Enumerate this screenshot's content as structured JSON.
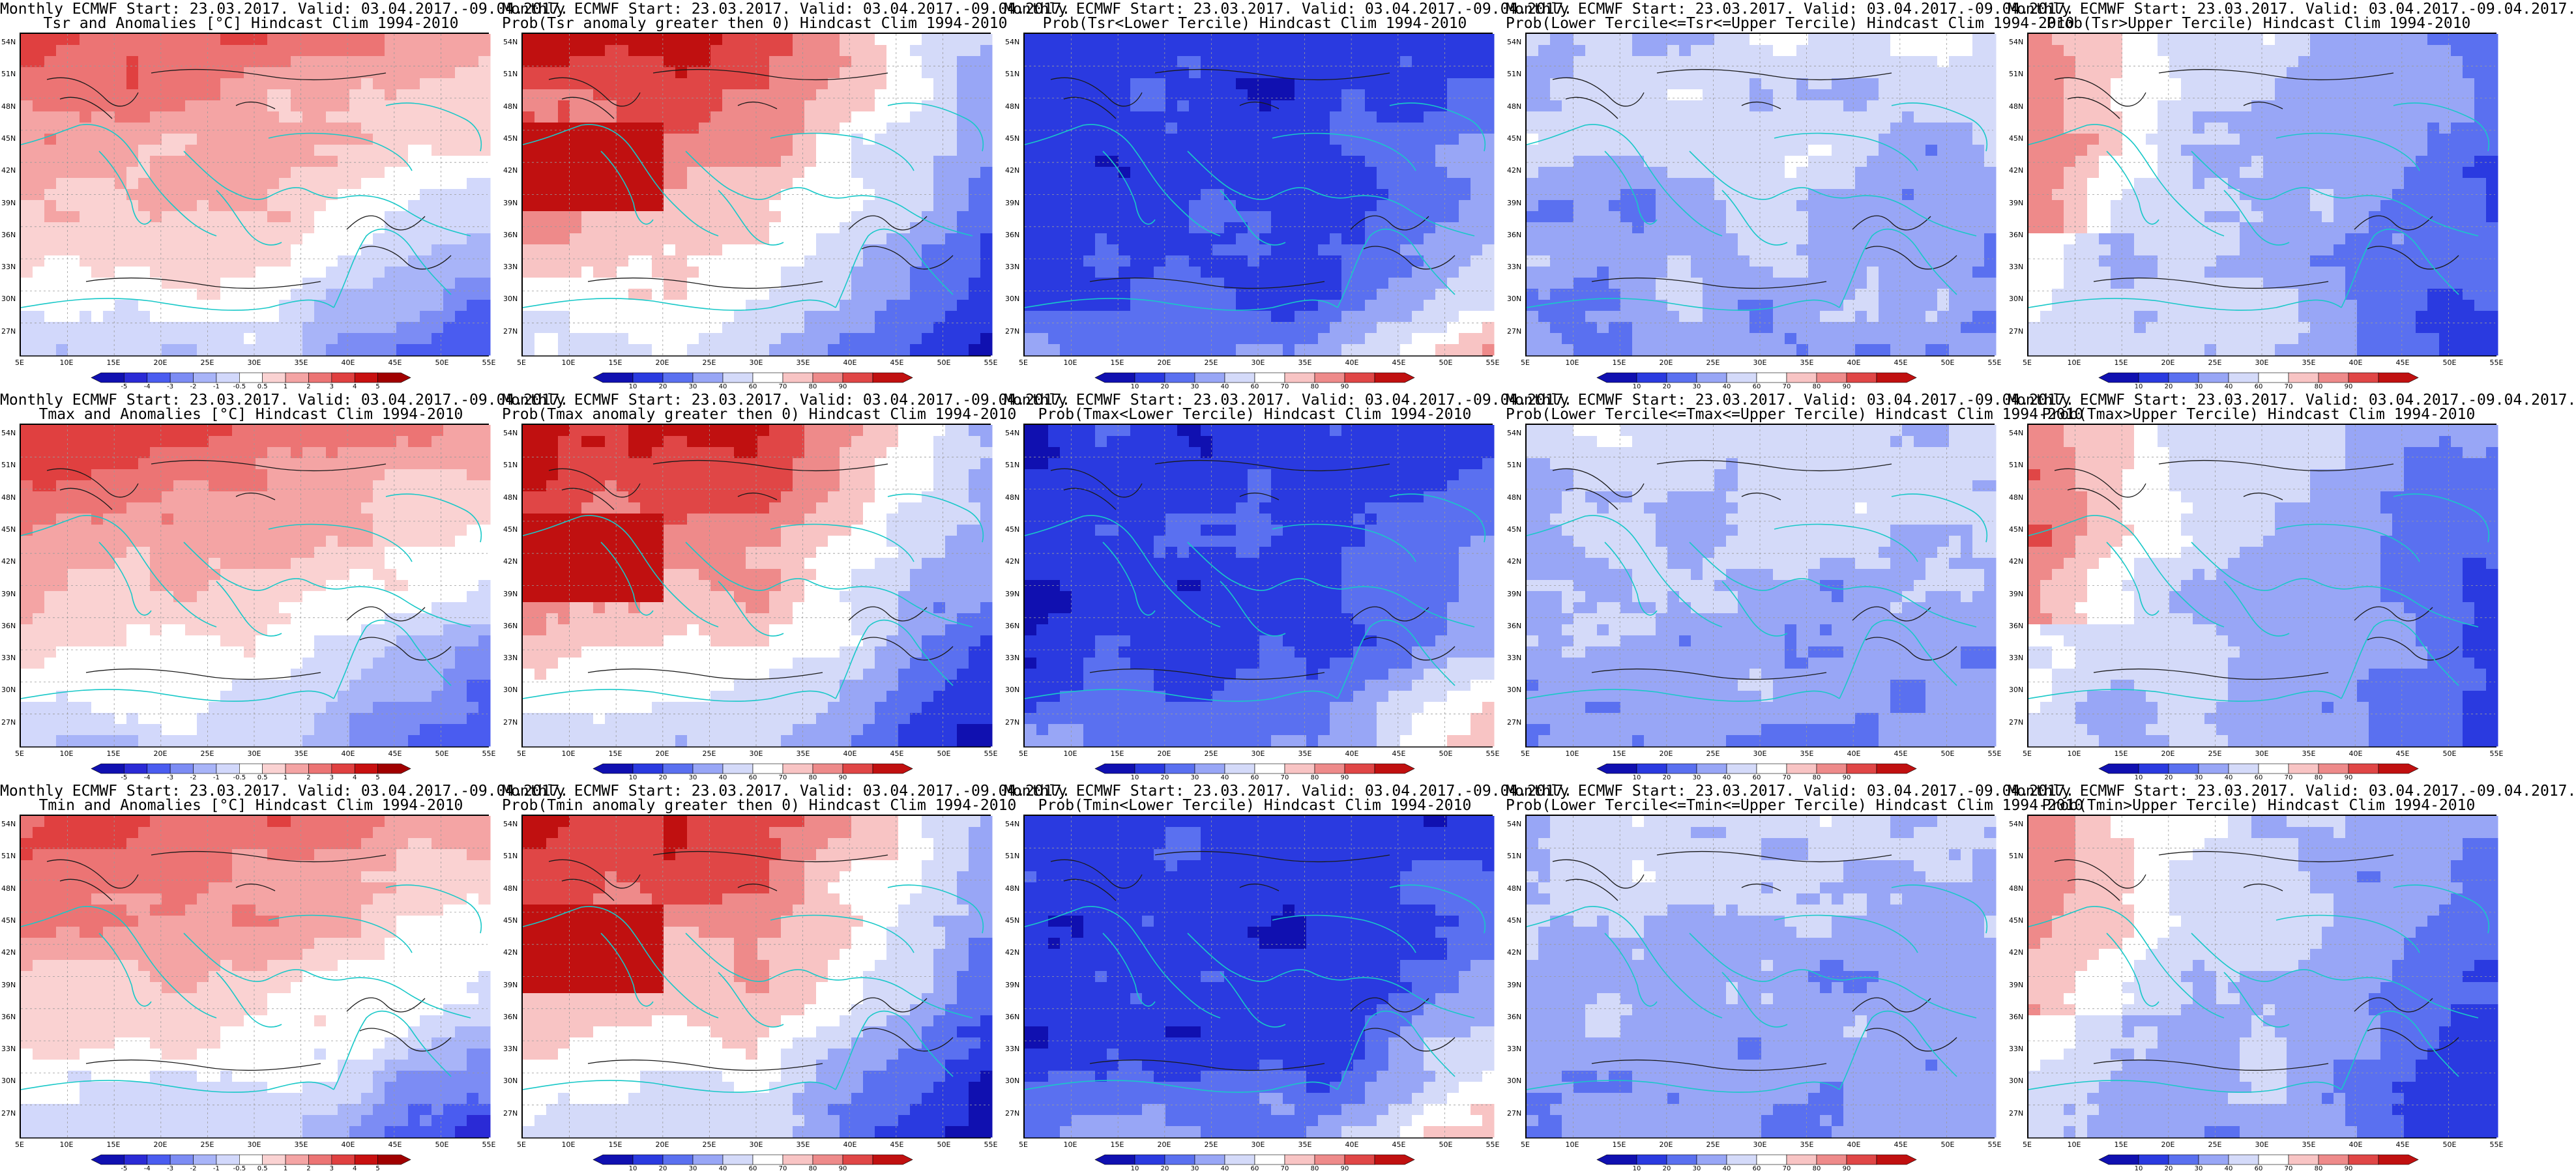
{
  "header_line": "Monthly ECMWF Start: 23.03.2017. Valid: 03.04.2017.-09.04.2017.",
  "lat_labels": [
    "54N",
    "51N",
    "48N",
    "45N",
    "42N",
    "39N",
    "36N",
    "33N",
    "30N",
    "27N"
  ],
  "lon_labels": [
    "5E",
    "10E",
    "15E",
    "20E",
    "25E",
    "30E",
    "35E",
    "40E",
    "45E",
    "50E",
    "55E"
  ],
  "colorbars": {
    "anomaly": {
      "ticks": [
        "-5",
        "-4",
        "-3",
        "-2",
        "-1",
        "-0.5",
        "0.5",
        "1",
        "2",
        "3",
        "4",
        "5"
      ],
      "colors": [
        "#1010b0",
        "#2a2ad6",
        "#4a5cf0",
        "#7c8cf4",
        "#a8b4f8",
        "#d2d8fb",
        "#ffffff",
        "#fad2d2",
        "#f4a4a4",
        "#ec7474",
        "#e04040",
        "#c81010",
        "#a00000"
      ]
    },
    "probability": {
      "ticks": [
        "10",
        "20",
        "30",
        "40",
        "60",
        "70",
        "80",
        "90"
      ],
      "colors": [
        "#1010b0",
        "#2a3ae0",
        "#5a70f0",
        "#98a6f6",
        "#d4daf9",
        "#ffffff",
        "#f8c4c4",
        "#ee8a8a",
        "#e04646",
        "#c01010"
      ]
    }
  },
  "panels": [
    {
      "id": "tsr-anomaly",
      "line1": "Monthly ECMWF Start: 23.03.2017. Valid: 03.04.2017.-09.04.2017.",
      "line2": "Tsr and Anomalies [°C] Hindcast Clim 1994-2010",
      "scheme": "anomaly",
      "pattern": "anom"
    },
    {
      "id": "tsr-prob-positive",
      "line1": "Monthly ECMWF Start: 23.03.2017. Valid: 03.04.2017.-09.04.2017.",
      "line2": "Prob(Tsr anomaly greater then 0) Hindcast Clim 1994-2010",
      "scheme": "probability",
      "pattern": "pos"
    },
    {
      "id": "tsr-prob-lower",
      "line1": "Monthly ECMWF Start: 23.03.2017. Valid: 03.04.2017.-09.04.2017.",
      "line2": "Prob(Tsr<Lower Tercile) Hindcast Clim 1994-2010",
      "scheme": "probability",
      "pattern": "lower"
    },
    {
      "id": "tsr-prob-middle",
      "line1": "Monthly ECMWF Start: 23.03.2017. Valid: 03.04.2017.-09.04.2017.",
      "line2": "Prob(Lower Tercile<=Tsr<=Upper Tercile) Hindcast Clim 1994-2010",
      "scheme": "probability",
      "pattern": "middle"
    },
    {
      "id": "tsr-prob-upper",
      "line1": "Monthly ECMWF Start: 23.03.2017. Valid: 03.04.2017.-09.04.2017.",
      "line2": "Prob(Tsr>Upper Tercile) Hindcast Clim 1994-2010",
      "scheme": "probability",
      "pattern": "upper"
    },
    {
      "id": "tmax-anomaly",
      "line1": "Monthly ECMWF Start: 23.03.2017. Valid: 03.04.2017.-09.04.2017.",
      "line2": "Tmax and Anomalies [°C] Hindcast Clim 1994-2010",
      "scheme": "anomaly",
      "pattern": "anom"
    },
    {
      "id": "tmax-prob-positive",
      "line1": "Monthly ECMWF Start: 23.03.2017. Valid: 03.04.2017.-09.04.2017.",
      "line2": "Prob(Tmax anomaly greater then 0) Hindcast Clim 1994-2010",
      "scheme": "probability",
      "pattern": "pos"
    },
    {
      "id": "tmax-prob-lower",
      "line1": "Monthly ECMWF Start: 23.03.2017. Valid: 03.04.2017.-09.04.2017.",
      "line2": "Prob(Tmax<Lower Tercile) Hindcast Clim 1994-2010",
      "scheme": "probability",
      "pattern": "lower"
    },
    {
      "id": "tmax-prob-middle",
      "line1": "Monthly ECMWF Start: 23.03.2017. Valid: 03.04.2017.-09.04.2017.",
      "line2": "Prob(Lower Tercile<=Tmax<=Upper Tercile) Hindcast Clim 1994-2010",
      "scheme": "probability",
      "pattern": "middle"
    },
    {
      "id": "tmax-prob-upper",
      "line1": "Monthly ECMWF Start: 23.03.2017. Valid: 03.04.2017.-09.04.2017.",
      "line2": "Prob(Tmax>Upper Tercile) Hindcast Clim 1994-2010",
      "scheme": "probability",
      "pattern": "upper"
    },
    {
      "id": "tmin-anomaly",
      "line1": "Monthly ECMWF Start: 23.03.2017. Valid: 03.04.2017.-09.04.2017.",
      "line2": "Tmin and Anomalies [°C] Hindcast Clim 1994-2010",
      "scheme": "anomaly",
      "pattern": "anom"
    },
    {
      "id": "tmin-prob-positive",
      "line1": "Monthly ECMWF Start: 23.03.2017. Valid: 03.04.2017.-09.04.2017.",
      "line2": "Prob(Tmin anomaly greater then 0) Hindcast Clim 1994-2010",
      "scheme": "probability",
      "pattern": "pos"
    },
    {
      "id": "tmin-prob-lower",
      "line1": "Monthly ECMWF Start: 23.03.2017. Valid: 03.04.2017.-09.04.2017.",
      "line2": "Prob(Tmin<Lower Tercile) Hindcast Clim 1994-2010",
      "scheme": "probability",
      "pattern": "lower"
    },
    {
      "id": "tmin-prob-middle",
      "line1": "Monthly ECMWF Start: 23.03.2017. Valid: 03.04.2017.-09.04.2017.",
      "line2": "Prob(Lower Tercile<=Tmin<=Upper Tercile) Hindcast Clim 1994-2010",
      "scheme": "probability",
      "pattern": "middle"
    },
    {
      "id": "tmin-prob-upper",
      "line1": "Monthly ECMWF Start: 23.03.2017. Valid: 03.04.2017.-09.04.2017.",
      "line2": "Prob(Tmin>Upper Tercile) Hindcast Clim 1994-2010",
      "scheme": "probability",
      "pattern": "upper"
    }
  ]
}
